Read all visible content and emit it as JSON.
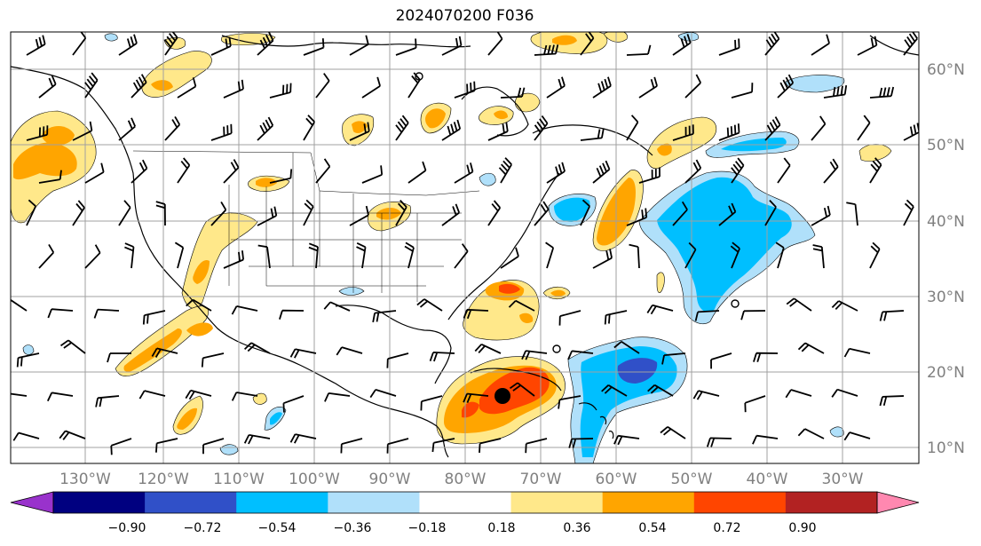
{
  "title": "2024070200 F036",
  "longitude_labels": [
    "130°W",
    "120°W",
    "110°W",
    "100°W",
    "90°W",
    "80°W",
    "70°W",
    "60°W",
    "50°W",
    "40°W",
    "30°W"
  ],
  "latitude_labels": [
    "60°N",
    "50°N",
    "40°N",
    "30°N",
    "20°N",
    "10°N"
  ],
  "colorbar": {
    "ticks": [
      "−0.90",
      "−0.72",
      "−0.54",
      "−0.36",
      "−0.18",
      "0.18",
      "0.36",
      "0.54",
      "0.72",
      "0.90"
    ],
    "colors": [
      "#9932cc",
      "#000080",
      "#3050c8",
      "#00bfff",
      "#b0e0fa",
      "#ffffff",
      "#ffe88a",
      "#ffa500",
      "#ff4500",
      "#b22222",
      "#ff88b0"
    ]
  },
  "colors": {
    "light_yellow": "#ffe88a",
    "orange": "#ffa500",
    "red_orange": "#ff4500",
    "light_blue": "#b0e0fa",
    "deep_sky_blue": "#00bfff",
    "royal_blue": "#3050c8",
    "grid": "#a0a0a0",
    "label": "#808080"
  },
  "marker": "black-dot"
}
